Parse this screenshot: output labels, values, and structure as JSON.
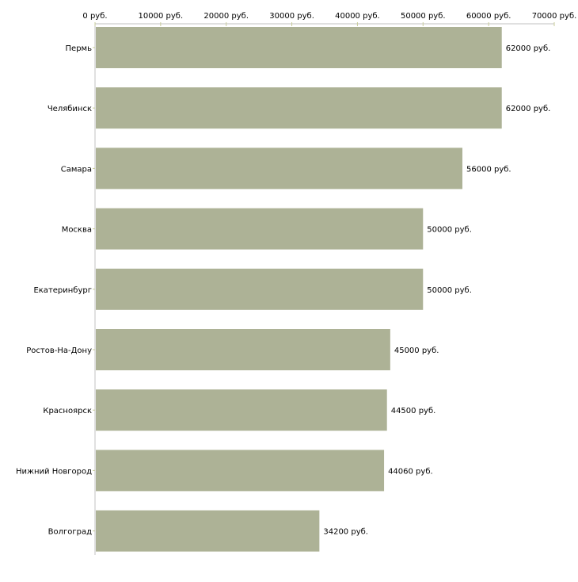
{
  "chart_data": {
    "type": "bar",
    "orientation": "horizontal",
    "categories": [
      "Пермь",
      "Челябинск",
      "Самара",
      "Москва",
      "Екатеринбург",
      "Ростов-На-Дону",
      "Красноярск",
      "Нижний Новгород",
      "Волгоград"
    ],
    "values": [
      62000,
      62000,
      56000,
      50000,
      50000,
      45000,
      44500,
      44060,
      34200
    ],
    "value_labels": [
      "62000 руб.",
      "62000 руб.",
      "56000 руб.",
      "50000 руб.",
      "50000 руб.",
      "45000 руб.",
      "44500 руб.",
      "44060 руб.",
      "34200 руб."
    ],
    "xlim": [
      0,
      70000
    ],
    "xticks": [
      0,
      10000,
      20000,
      30000,
      40000,
      50000,
      60000,
      70000
    ],
    "xtick_labels": [
      "0 руб.",
      "10000 руб.",
      "20000 руб.",
      "30000 руб.",
      "40000 руб.",
      "50000 руб.",
      "60000 руб.",
      "70000 руб."
    ],
    "xaxis_position": "top",
    "title": "",
    "xlabel": "",
    "ylabel": "",
    "grid": false,
    "bar_color": "#adb296",
    "axis_color": "#c0c0c0",
    "tick_color": "#c8cc9a"
  }
}
